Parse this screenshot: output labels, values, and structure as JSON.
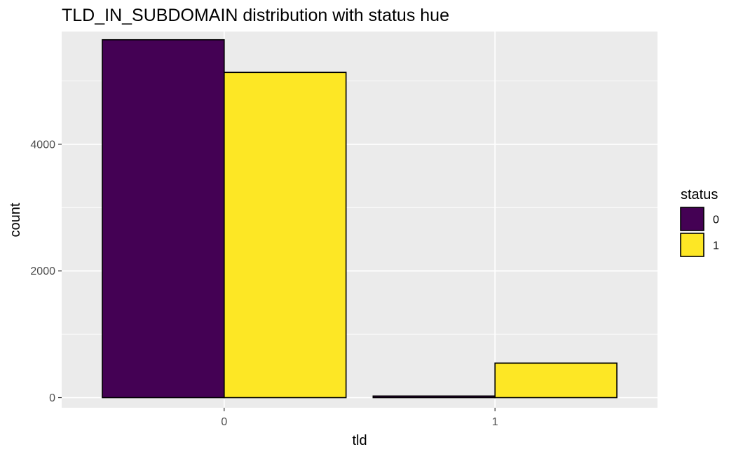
{
  "chart_data": {
    "type": "bar",
    "title": "TLD_IN_SUBDOMAIN distribution with status hue",
    "xlabel": "tld",
    "ylabel": "count",
    "categories": [
      "0",
      "1"
    ],
    "series": [
      {
        "name": "0",
        "color": "#440154",
        "values": [
          5650,
          25
        ]
      },
      {
        "name": "1",
        "color": "#FDE725",
        "values": [
          5135,
          545
        ]
      }
    ],
    "ylim": [
      -160,
      5780
    ],
    "yticks": [
      0,
      2000,
      4000
    ],
    "ytick_labels": [
      "0",
      "2000",
      "4000"
    ],
    "grid": true,
    "panel_background": "#EBEBEB",
    "legend": {
      "title": "status",
      "position": "right",
      "entries": [
        "0",
        "1"
      ]
    }
  }
}
